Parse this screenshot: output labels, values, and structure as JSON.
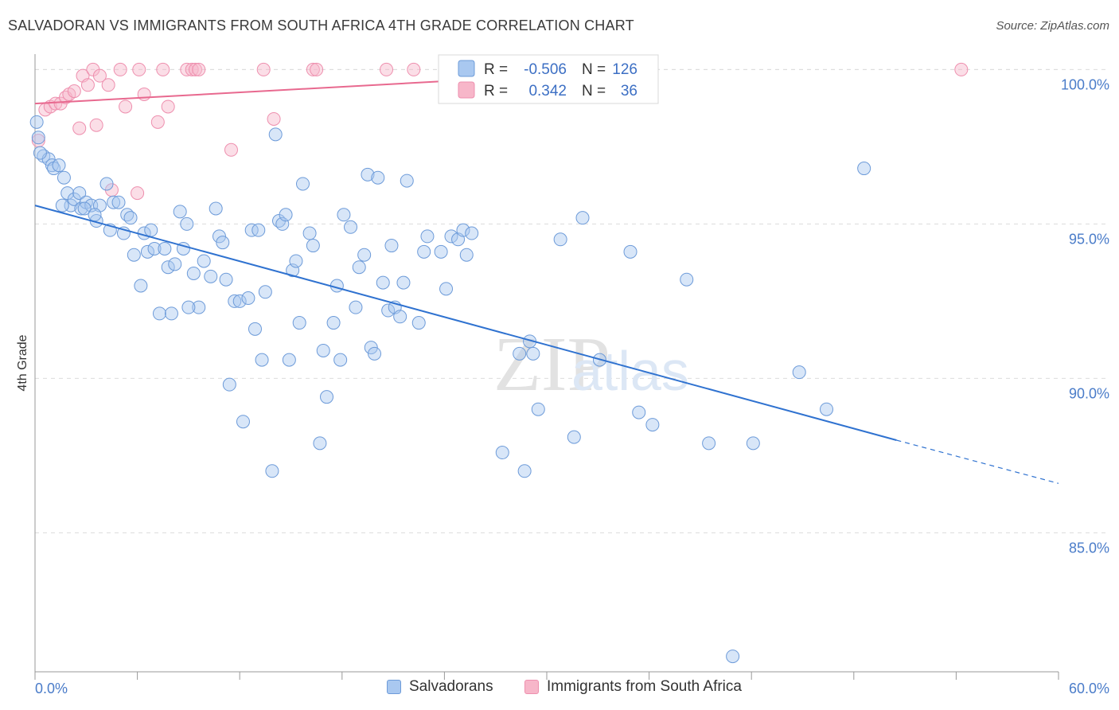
{
  "header": {
    "title": "SALVADORAN VS IMMIGRANTS FROM SOUTH AFRICA 4TH GRADE CORRELATION CHART",
    "source": "Source: ZipAtlas.com"
  },
  "watermark": {
    "zip": "ZIP",
    "atlas": "atlas"
  },
  "colors": {
    "blue_fill": "#a9c8f0",
    "blue_stroke": "#6d9bd9",
    "blue_line": "#2f72d0",
    "pink_fill": "#f7b6c9",
    "pink_stroke": "#ee8fae",
    "pink_line": "#e8698f",
    "grid": "#dcdcdc",
    "axis_text": "#4a7cc9"
  },
  "legend": {
    "rows": [
      {
        "r_label": "R =",
        "r_value": "-0.506",
        "n_label": "N =",
        "n_value": "126"
      },
      {
        "r_label": "R =",
        "r_value": "0.342",
        "n_label": "N =",
        "n_value": "36"
      }
    ]
  },
  "bottom_legend": {
    "items": [
      {
        "label": "Salvadorans"
      },
      {
        "label": "Immigrants from South Africa"
      }
    ]
  },
  "chart_data": {
    "type": "scatter",
    "title": "SALVADORAN VS IMMIGRANTS FROM SOUTH AFRICA 4TH GRADE CORRELATION CHART",
    "ylabel": "4th Grade",
    "xlim": [
      0,
      60
    ],
    "ylim": [
      80.5,
      100.5
    ],
    "x_tick_labels": [
      "0.0%",
      "60.0%"
    ],
    "y_ticks": [
      85,
      90,
      95,
      100
    ],
    "y_tick_labels": [
      "85.0%",
      "90.0%",
      "95.0%",
      "100.0%"
    ],
    "grid": "horizontal dashed",
    "series": [
      {
        "name": "Salvadorans",
        "r": -0.506,
        "n": 126,
        "trend": {
          "x0": 0,
          "y0": 95.6,
          "x1": 50.5,
          "y1": 88.0,
          "dash_to_x": 60,
          "dash_to_y": 86.6
        },
        "points": [
          [
            0.1,
            98.3
          ],
          [
            0.2,
            97.8
          ],
          [
            0.5,
            97.2
          ],
          [
            0.8,
            97.1
          ],
          [
            1.0,
            96.9
          ],
          [
            1.1,
            96.8
          ],
          [
            1.4,
            96.9
          ],
          [
            1.7,
            96.5
          ],
          [
            1.9,
            96.0
          ],
          [
            2.1,
            95.6
          ],
          [
            2.3,
            95.8
          ],
          [
            2.6,
            96.0
          ],
          [
            2.7,
            95.5
          ],
          [
            3.0,
            95.7
          ],
          [
            3.3,
            95.6
          ],
          [
            3.6,
            95.1
          ],
          [
            3.8,
            95.6
          ],
          [
            4.2,
            96.3
          ],
          [
            4.4,
            94.8
          ],
          [
            4.6,
            95.7
          ],
          [
            4.9,
            95.7
          ],
          [
            5.2,
            94.7
          ],
          [
            5.4,
            95.3
          ],
          [
            5.6,
            95.2
          ],
          [
            5.8,
            94.0
          ],
          [
            6.2,
            93.0
          ],
          [
            6.4,
            94.7
          ],
          [
            6.6,
            94.1
          ],
          [
            6.8,
            94.8
          ],
          [
            7.0,
            94.2
          ],
          [
            7.3,
            92.1
          ],
          [
            7.6,
            94.2
          ],
          [
            7.8,
            93.6
          ],
          [
            8.0,
            92.1
          ],
          [
            8.2,
            93.7
          ],
          [
            8.5,
            95.4
          ],
          [
            8.7,
            94.2
          ],
          [
            8.9,
            95.0
          ],
          [
            9.3,
            93.4
          ],
          [
            9.6,
            92.3
          ],
          [
            9.9,
            93.8
          ],
          [
            10.3,
            93.3
          ],
          [
            10.6,
            95.5
          ],
          [
            10.8,
            94.6
          ],
          [
            11.0,
            94.4
          ],
          [
            11.2,
            93.2
          ],
          [
            11.4,
            89.8
          ],
          [
            11.7,
            92.5
          ],
          [
            12.0,
            92.5
          ],
          [
            12.2,
            88.6
          ],
          [
            12.5,
            92.6
          ],
          [
            12.7,
            94.8
          ],
          [
            12.9,
            91.6
          ],
          [
            13.1,
            94.8
          ],
          [
            13.3,
            90.6
          ],
          [
            13.5,
            92.8
          ],
          [
            13.9,
            87.0
          ],
          [
            14.1,
            97.9
          ],
          [
            14.3,
            95.1
          ],
          [
            14.5,
            95.0
          ],
          [
            14.7,
            95.3
          ],
          [
            14.9,
            90.6
          ],
          [
            15.1,
            93.5
          ],
          [
            15.3,
            93.8
          ],
          [
            15.5,
            91.8
          ],
          [
            15.7,
            96.3
          ],
          [
            16.1,
            94.7
          ],
          [
            16.3,
            94.3
          ],
          [
            16.7,
            87.9
          ],
          [
            16.9,
            90.9
          ],
          [
            17.1,
            89.4
          ],
          [
            17.5,
            91.8
          ],
          [
            17.7,
            93.0
          ],
          [
            17.9,
            90.6
          ],
          [
            18.1,
            95.3
          ],
          [
            18.5,
            94.9
          ],
          [
            18.8,
            92.3
          ],
          [
            19.0,
            93.6
          ],
          [
            19.3,
            94.0
          ],
          [
            19.5,
            96.6
          ],
          [
            19.7,
            91.0
          ],
          [
            19.9,
            90.8
          ],
          [
            20.1,
            96.5
          ],
          [
            20.4,
            93.1
          ],
          [
            20.7,
            92.2
          ],
          [
            20.9,
            94.3
          ],
          [
            21.1,
            92.3
          ],
          [
            21.4,
            92.0
          ],
          [
            21.6,
            93.1
          ],
          [
            21.8,
            96.4
          ],
          [
            22.5,
            91.8
          ],
          [
            22.8,
            94.1
          ],
          [
            23.0,
            94.6
          ],
          [
            23.8,
            94.1
          ],
          [
            24.1,
            92.9
          ],
          [
            24.4,
            94.6
          ],
          [
            24.8,
            94.5
          ],
          [
            25.1,
            94.8
          ],
          [
            25.3,
            94.0
          ],
          [
            25.6,
            94.7
          ],
          [
            26.2,
            100.0
          ],
          [
            27.4,
            87.6
          ],
          [
            28.4,
            90.8
          ],
          [
            28.7,
            87.0
          ],
          [
            29.0,
            91.2
          ],
          [
            29.2,
            90.8
          ],
          [
            29.5,
            89.0
          ],
          [
            30.8,
            94.5
          ],
          [
            31.6,
            88.1
          ],
          [
            32.1,
            95.2
          ],
          [
            33.1,
            90.6
          ],
          [
            34.9,
            94.1
          ],
          [
            35.4,
            88.9
          ],
          [
            36.2,
            88.5
          ],
          [
            38.2,
            93.2
          ],
          [
            39.5,
            87.9
          ],
          [
            40.9,
            81.0
          ],
          [
            42.1,
            87.9
          ],
          [
            44.8,
            90.2
          ],
          [
            46.4,
            89.0
          ],
          [
            48.6,
            96.8
          ],
          [
            0.3,
            97.3
          ],
          [
            1.6,
            95.6
          ],
          [
            2.9,
            95.5
          ],
          [
            3.5,
            95.3
          ],
          [
            9.0,
            92.3
          ]
        ]
      },
      {
        "name": "Immigrants from South Africa",
        "r": 0.342,
        "n": 36,
        "trend": {
          "x0": 0,
          "y0": 98.9,
          "x1": 36.5,
          "y1": 100.0
        },
        "points": [
          [
            0.2,
            97.7
          ],
          [
            0.6,
            98.7
          ],
          [
            0.9,
            98.8
          ],
          [
            1.2,
            98.9
          ],
          [
            1.5,
            98.9
          ],
          [
            1.8,
            99.1
          ],
          [
            2.0,
            99.2
          ],
          [
            2.3,
            99.3
          ],
          [
            2.6,
            98.1
          ],
          [
            2.8,
            99.8
          ],
          [
            3.1,
            99.5
          ],
          [
            3.4,
            100.0
          ],
          [
            3.6,
            98.2
          ],
          [
            3.8,
            99.8
          ],
          [
            4.3,
            99.5
          ],
          [
            4.5,
            96.1
          ],
          [
            5.0,
            100.0
          ],
          [
            5.3,
            98.8
          ],
          [
            6.0,
            96.0
          ],
          [
            6.1,
            100.0
          ],
          [
            6.4,
            99.2
          ],
          [
            7.2,
            98.3
          ],
          [
            7.5,
            100.0
          ],
          [
            7.8,
            98.8
          ],
          [
            8.9,
            100.0
          ],
          [
            9.2,
            100.0
          ],
          [
            9.4,
            100.0
          ],
          [
            9.6,
            100.0
          ],
          [
            11.5,
            97.4
          ],
          [
            13.4,
            100.0
          ],
          [
            14.0,
            98.4
          ],
          [
            16.3,
            100.0
          ],
          [
            16.5,
            100.0
          ],
          [
            20.6,
            100.0
          ],
          [
            22.2,
            100.0
          ],
          [
            54.3,
            100.0
          ]
        ]
      }
    ]
  }
}
